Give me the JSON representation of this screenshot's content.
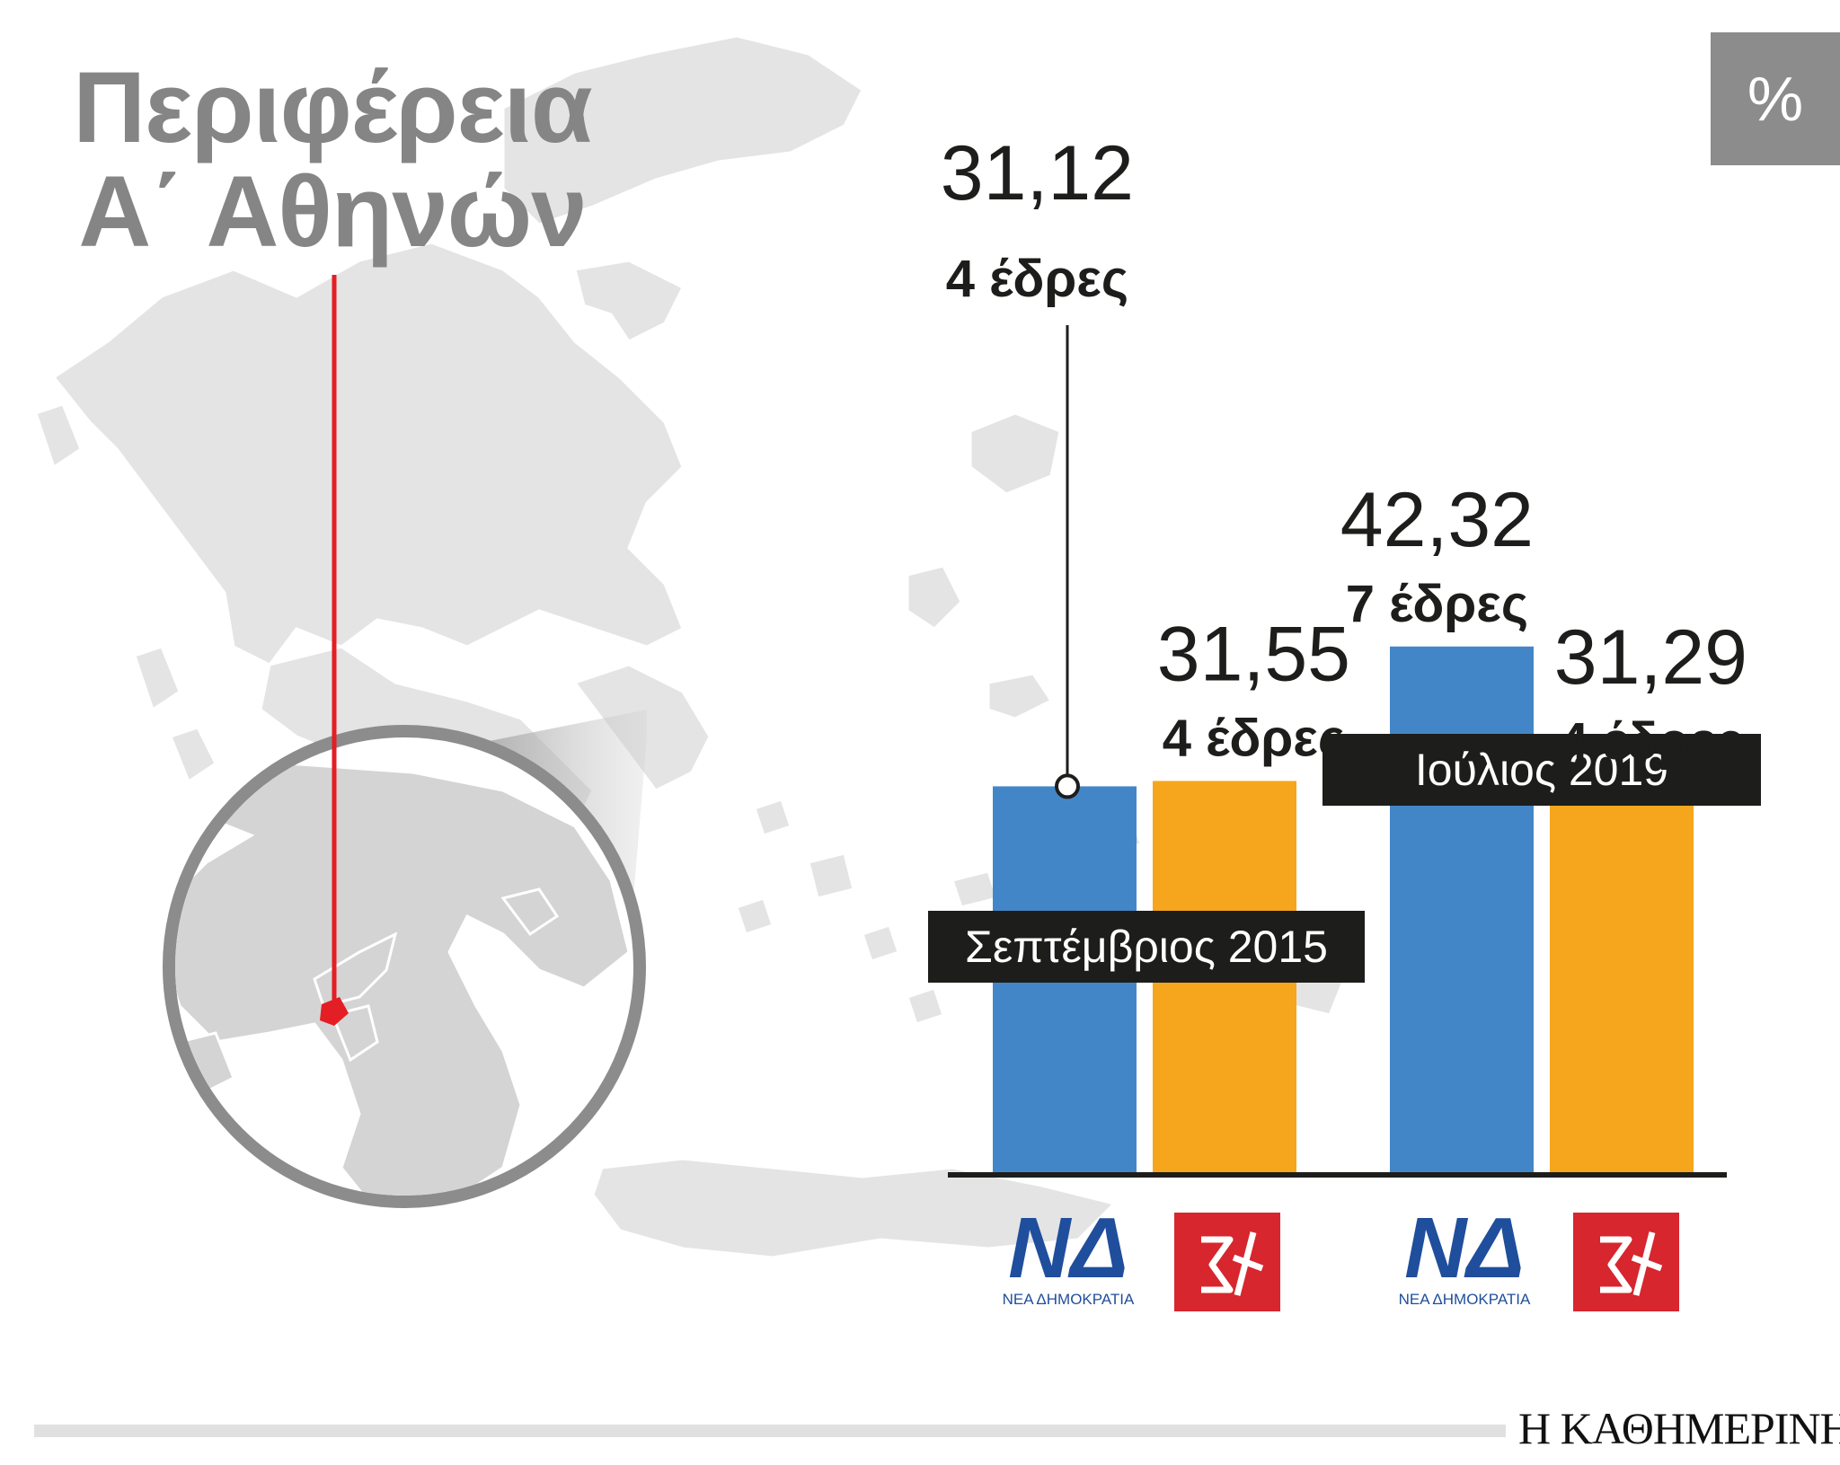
{
  "title": {
    "line1": "Περιφέρεια",
    "line2": "Α΄ Αθηνών"
  },
  "unit_badge": "%",
  "colors": {
    "nd": "#4386c8",
    "syriza": "#f5a61d",
    "map": "#e3e3e3",
    "pointer": "#e31e24",
    "label_bg": "#1d1d1b"
  },
  "chart_data": {
    "type": "bar",
    "categories": [
      "Σεπτέμβριος 2015",
      "Ιούλιος 2019"
    ],
    "series": [
      {
        "name": "ΝΔ",
        "values": [
          31.12,
          42.32
        ],
        "labels": [
          "31,12",
          "42,32"
        ],
        "seats": [
          "4 έδρες",
          "7 έδρες"
        ]
      },
      {
        "name": "ΣΥΡΙΖΑ",
        "values": [
          31.55,
          31.29
        ],
        "labels": [
          "31,55",
          "31,29"
        ],
        "seats": [
          "4 έδρες",
          "4 έδρες"
        ]
      }
    ],
    "unit": "%",
    "grid": false,
    "legend": "logos below bars"
  },
  "logos": {
    "nd": {
      "mark": "ΝΔ",
      "caption": "ΝΕΑ ΔΗΜΟΚΡΑΤΙΑ"
    },
    "syriza": {
      "mark": "ΣΥΡΙΖΑ"
    }
  },
  "brand": "Η ΚΑΘΗΜΕΡΙΝΗ"
}
